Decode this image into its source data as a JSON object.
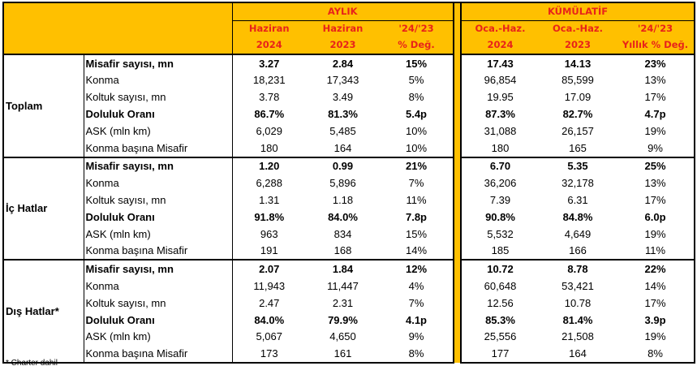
{
  "header": {
    "monthly": "AYLIK",
    "cumulative": "KÜMÜLATİF",
    "columns": [
      [
        "Haziran",
        "2024"
      ],
      [
        "Haziran",
        "2023"
      ],
      [
        "'24/'23",
        "% Değ."
      ],
      [
        "Oca.-Haz.",
        "2024"
      ],
      [
        "Oca.-Haz.",
        "2023"
      ],
      [
        "'24/'23",
        "Yıllık % Değ."
      ]
    ]
  },
  "groups": [
    {
      "label": "Toplam",
      "rows": [
        {
          "metric": "Misafir sayısı, mn",
          "bold": true,
          "values": [
            "3.27",
            "2.84",
            "15%",
            "17.43",
            "14.13",
            "23%"
          ]
        },
        {
          "metric": "Konma",
          "bold": false,
          "values": [
            "18,231",
            "17,343",
            "5%",
            "96,854",
            "85,599",
            "13%"
          ]
        },
        {
          "metric": "Koltuk sayısı, mn",
          "bold": false,
          "values": [
            "3.78",
            "3.49",
            "8%",
            "19.95",
            "17.09",
            "17%"
          ]
        },
        {
          "metric": "Doluluk Oranı",
          "bold": true,
          "values": [
            "86.7%",
            "81.3%",
            "5.4p",
            "87.3%",
            "82.7%",
            "4.7p"
          ]
        },
        {
          "metric": "ASK (mln km)",
          "bold": false,
          "values": [
            "6,029",
            "5,485",
            "10%",
            "31,088",
            "26,157",
            "19%"
          ]
        },
        {
          "metric": "Konma başına Misafir",
          "bold": false,
          "values": [
            "180",
            "164",
            "10%",
            "180",
            "165",
            "9%"
          ]
        }
      ]
    },
    {
      "label": "İç Hatlar",
      "rows": [
        {
          "metric": "Misafir sayısı, mn",
          "bold": true,
          "values": [
            "1.20",
            "0.99",
            "21%",
            "6.70",
            "5.35",
            "25%"
          ]
        },
        {
          "metric": "Konma",
          "bold": false,
          "values": [
            "6,288",
            "5,896",
            "7%",
            "36,206",
            "32,178",
            "13%"
          ]
        },
        {
          "metric": "Koltuk sayısı, mn",
          "bold": false,
          "values": [
            "1.31",
            "1.18",
            "11%",
            "7.39",
            "6.31",
            "17%"
          ]
        },
        {
          "metric": "Doluluk Oranı",
          "bold": true,
          "values": [
            "91.8%",
            "84.0%",
            "7.8p",
            "90.8%",
            "84.8%",
            "6.0p"
          ]
        },
        {
          "metric": "ASK (mln km)",
          "bold": false,
          "values": [
            "963",
            "834",
            "15%",
            "5,532",
            "4,649",
            "19%"
          ]
        },
        {
          "metric": "Konma başına Misafir",
          "bold": false,
          "values": [
            "191",
            "168",
            "14%",
            "185",
            "166",
            "11%"
          ]
        }
      ]
    },
    {
      "label": "Dış Hatlar*",
      "rows": [
        {
          "metric": "Misafir sayısı, mn",
          "bold": true,
          "values": [
            "2.07",
            "1.84",
            "12%",
            "10.72",
            "8.78",
            "22%"
          ]
        },
        {
          "metric": "Konma",
          "bold": false,
          "values": [
            "11,943",
            "11,447",
            "4%",
            "60,648",
            "53,421",
            "14%"
          ]
        },
        {
          "metric": "Koltuk sayısı, mn",
          "bold": false,
          "values": [
            "2.47",
            "2.31",
            "7%",
            "12.56",
            "10.78",
            "17%"
          ]
        },
        {
          "metric": "Doluluk Oranı",
          "bold": true,
          "values": [
            "84.0%",
            "79.9%",
            "4.1p",
            "85.3%",
            "81.4%",
            "3.9p"
          ]
        },
        {
          "metric": "ASK (mln km)",
          "bold": false,
          "values": [
            "5,067",
            "4,650",
            "9%",
            "25,556",
            "21,508",
            "19%"
          ]
        },
        {
          "metric": "Konma başına Misafir",
          "bold": false,
          "values": [
            "173",
            "161",
            "8%",
            "177",
            "164",
            "8%"
          ]
        }
      ]
    }
  ],
  "footnote": "* Charter dahil",
  "colors": {
    "header_bg": "#FFC000",
    "header_text": "#E8231A"
  }
}
